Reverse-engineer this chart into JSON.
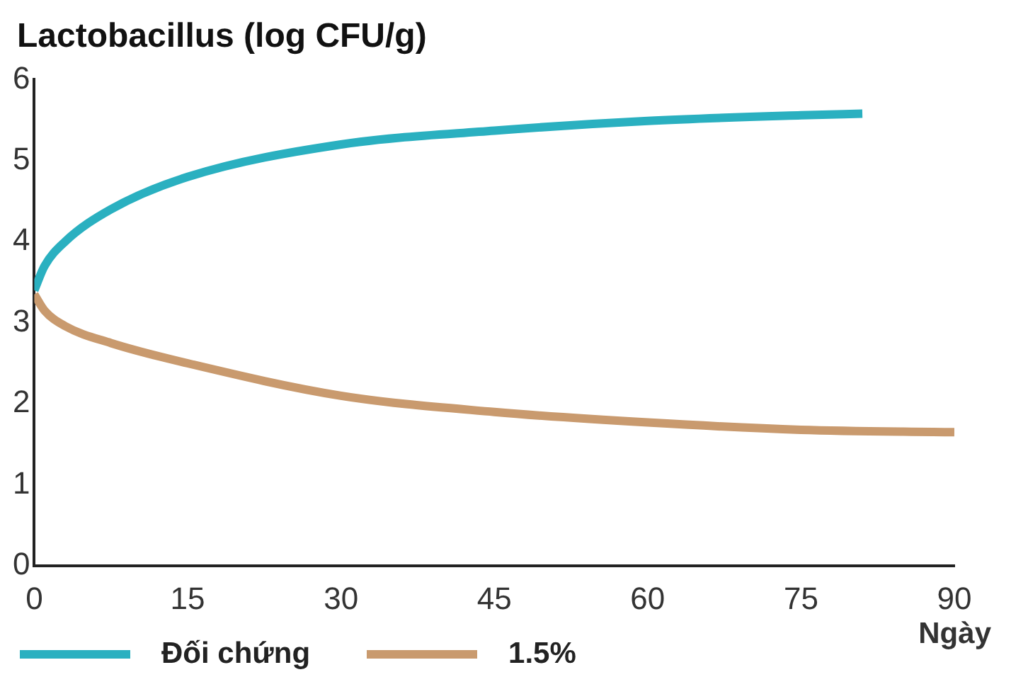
{
  "chart_data": {
    "type": "line",
    "title": "Lactobacillus (log CFU/g)",
    "xlabel": "Ngày",
    "xlim": [
      0,
      90
    ],
    "xticks": [
      0,
      15,
      30,
      45,
      60,
      75,
      90
    ],
    "ylim": [
      0,
      6
    ],
    "yticks": [
      0,
      1,
      2,
      3,
      4,
      5,
      6
    ],
    "grid": false,
    "legend": "bottom",
    "marker": "none",
    "line_style": "solid",
    "series": [
      {
        "name": "Đối chứng",
        "color": "#2ab0c0",
        "x": [
          0,
          1,
          3,
          7.5,
          15,
          30,
          45,
          60,
          75,
          81
        ],
        "values": [
          3.4,
          3.7,
          4.0,
          4.4,
          4.8,
          5.2,
          5.37,
          5.49,
          5.56,
          5.58
        ]
      },
      {
        "name": "1.5%",
        "color": "#c99a6e",
        "x": [
          0,
          1,
          3,
          7.5,
          15,
          30,
          45,
          60,
          75,
          90
        ],
        "values": [
          3.35,
          3.15,
          2.96,
          2.75,
          2.5,
          2.1,
          1.9,
          1.77,
          1.68,
          1.65
        ]
      }
    ]
  }
}
